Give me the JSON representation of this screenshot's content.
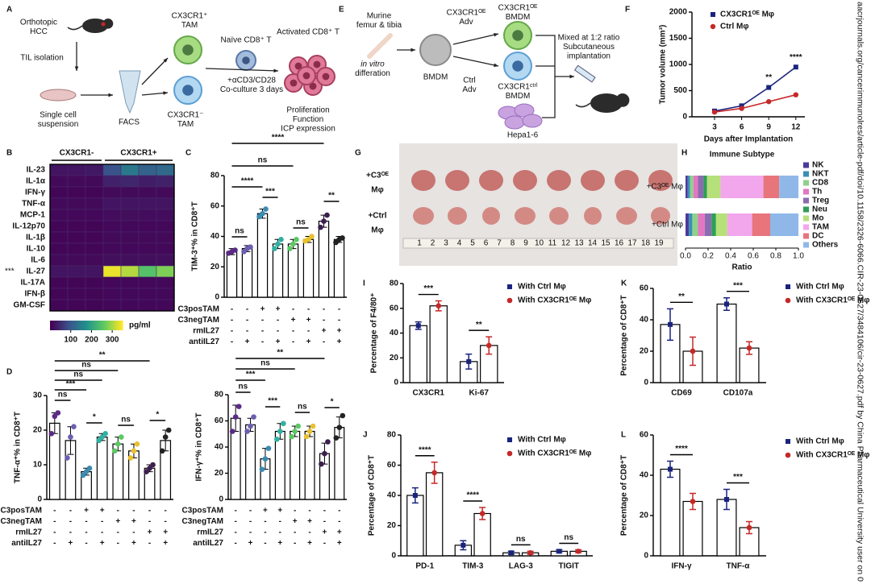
{
  "panel_labels": [
    "A",
    "B",
    "C",
    "D",
    "E",
    "F",
    "G",
    "H",
    "I",
    "J",
    "K",
    "L"
  ],
  "side_note": "aacrjournals.org/cancerimmunolres/article-pdf/doi/10.1158/2326-6066.CIR-23-0627/3484106/cir-23-0627.pdf by China Pharmaceutical University user on 0",
  "diagram_a": {
    "texts": [
      [
        "Orthotopic",
        "HCC"
      ],
      [
        "TIL isolation"
      ],
      [
        "Single cell",
        "suspension"
      ],
      [
        "FACS"
      ],
      [
        "CX3CR1⁺",
        "TAM"
      ],
      [
        "CX3CR1⁻",
        "TAM"
      ],
      [
        "Naïve CD8⁺ T"
      ],
      [
        "+αCD3/CD28",
        "Co-culture 3 days"
      ],
      [
        "Activated CD8⁺ T"
      ],
      [
        "Proliferation",
        "Function",
        "ICP expression"
      ]
    ]
  },
  "diagram_e": {
    "texts": [
      [
        "Murine",
        "femur & tibia"
      ],
      [
        "in vitro",
        "differation"
      ],
      [
        "BMDM"
      ],
      [
        "CX3CR1ᴼᴱ",
        "Adv"
      ],
      [
        "Ctrl",
        "Adv"
      ],
      [
        "CX3CR1ᴼᴱ",
        "BMDM"
      ],
      [
        "CX3CR1ᶜᵗʳˡ",
        "BMDM"
      ],
      [
        "Mixed at 1:2 ratio",
        "Subcutaneous",
        "implantation"
      ],
      [
        "Hepa1-6"
      ]
    ]
  },
  "photo_g": {
    "labels": [
      [
        "+C3ᴼᴱ",
        "Mφ"
      ],
      [
        "+Ctrl",
        "Mφ"
      ]
    ],
    "ruler": [
      "1",
      "2",
      "3",
      "4",
      "5",
      "6",
      "7",
      "8",
      "9",
      "10",
      "11",
      "12",
      "13",
      "14",
      "15",
      "16",
      "17",
      "18",
      "19"
    ]
  },
  "chart_data": [
    {
      "type": "heatmap",
      "rows": [
        "IL-23",
        "IL-1α",
        "IFN-γ",
        "TNF-α",
        "MCP-1",
        "IL-12p70",
        "IL-1β",
        "IL-10",
        "IL-6",
        "IL-27",
        "IL-17A",
        "IFN-β",
        "GM-CSF"
      ],
      "row_marks": [
        null,
        null,
        null,
        null,
        null,
        null,
        null,
        null,
        null,
        "***",
        null,
        null,
        null
      ],
      "groups": [
        {
          "name": "CX3CR1-",
          "values": [
            [
              20,
              20,
              25
            ],
            [
              10,
              10,
              10
            ],
            [
              5,
              5,
              5
            ],
            [
              10,
              10,
              10
            ],
            [
              8,
              8,
              8
            ],
            [
              5,
              5,
              5
            ],
            [
              5,
              5,
              5
            ],
            [
              5,
              5,
              5
            ],
            [
              10,
              10,
              10
            ],
            [
              20,
              20,
              20
            ],
            [
              5,
              5,
              5
            ],
            [
              5,
              5,
              5
            ],
            [
              5,
              5,
              5
            ]
          ]
        },
        {
          "name": "CX3CR1+",
          "values": [
            [
              90,
              140,
              110,
              120
            ],
            [
              35,
              40,
              30,
              35
            ],
            [
              10,
              10,
              10,
              10
            ],
            [
              20,
              20,
              20,
              20
            ],
            [
              12,
              15,
              12,
              12
            ],
            [
              8,
              8,
              8,
              8
            ],
            [
              10,
              10,
              10,
              10
            ],
            [
              8,
              8,
              8,
              8
            ],
            [
              15,
              15,
              15,
              15
            ],
            [
              340,
              310,
              250,
              280
            ],
            [
              8,
              8,
              8,
              8
            ],
            [
              8,
              8,
              8,
              8
            ],
            [
              8,
              8,
              8,
              8
            ]
          ]
        }
      ],
      "clim": [
        0,
        350
      ],
      "cticks": [
        100,
        200,
        300
      ],
      "clabel": "pg/ml"
    },
    {
      "type": "bar",
      "ylabel": "TIM-3⁺% in CD8⁺T",
      "values": [
        30,
        32,
        55,
        35,
        35,
        38,
        50,
        38
      ],
      "errors": [
        2,
        2,
        3,
        3,
        3,
        2,
        4,
        2
      ],
      "points": [
        [
          29,
          30,
          31
        ],
        [
          30,
          32,
          33
        ],
        [
          53,
          55,
          58
        ],
        [
          32,
          35,
          38
        ],
        [
          32,
          35,
          38
        ],
        [
          37,
          38,
          40
        ],
        [
          46,
          50,
          54
        ],
        [
          36,
          38,
          39
        ]
      ],
      "colors": [
        "#5b2a86",
        "#6b5fb0",
        "#3b8bb0",
        "#2fb0a0",
        "#5bc862",
        "#e8c12e",
        "#3d1f4f",
        "#222222"
      ],
      "ylim": [
        0,
        80
      ],
      "yticks": [
        0,
        20,
        40,
        60,
        80
      ],
      "conditions": [
        {
          "name": "C3posTAM",
          "signs": [
            "-",
            "-",
            "+",
            "+",
            "-",
            "-",
            "-",
            "-"
          ]
        },
        {
          "name": "C3negTAM",
          "signs": [
            "-",
            "-",
            "-",
            "-",
            "+",
            "+",
            "-",
            "-"
          ]
        },
        {
          "name": "rmIL27",
          "signs": [
            "-",
            "-",
            "-",
            "-",
            "-",
            "-",
            "+",
            "+"
          ]
        },
        {
          "name": "antiIL27",
          "signs": [
            "-",
            "+",
            "-",
            "+",
            "-",
            "+",
            "-",
            "+"
          ]
        }
      ],
      "annotations": [
        "****",
        "ns",
        "****",
        "ns",
        "***",
        "ns",
        "**"
      ]
    },
    {
      "type": "bar",
      "ylabel": "TNF-α⁺% in CD8⁺T",
      "values": [
        22,
        17,
        8,
        18,
        16,
        14,
        9,
        17
      ],
      "errors": [
        3,
        4,
        1,
        1,
        2,
        2,
        1,
        3
      ],
      "points": [
        [
          19,
          24,
          25
        ],
        [
          12,
          18,
          21
        ],
        [
          7,
          8,
          9
        ],
        [
          17,
          18,
          19
        ],
        [
          14,
          16,
          18
        ],
        [
          12,
          14,
          16
        ],
        [
          8,
          9,
          10
        ],
        [
          14,
          18,
          20
        ]
      ],
      "colors": [
        "#5b2a86",
        "#6b5fb0",
        "#3b8bb0",
        "#2fb0a0",
        "#5bc862",
        "#e8c12e",
        "#3d1f4f",
        "#222222"
      ],
      "ylim": [
        0,
        30
      ],
      "yticks": [
        0,
        10,
        20,
        30
      ],
      "conditions": [
        {
          "name": "C3posTAM",
          "signs": [
            "-",
            "-",
            "+",
            "+",
            "-",
            "-",
            "-",
            "-"
          ]
        },
        {
          "name": "C3negTAM",
          "signs": [
            "-",
            "-",
            "-",
            "-",
            "+",
            "+",
            "-",
            "-"
          ]
        },
        {
          "name": "rmIL27",
          "signs": [
            "-",
            "-",
            "-",
            "-",
            "-",
            "-",
            "+",
            "+"
          ]
        },
        {
          "name": "antiIL27",
          "signs": [
            "-",
            "+",
            "-",
            "+",
            "-",
            "+",
            "-",
            "+"
          ]
        }
      ],
      "annotations": [
        "**",
        "ns",
        "ns",
        "***",
        "ns",
        "*",
        "ns",
        "*"
      ]
    },
    {
      "type": "bar",
      "ylabel": "IFN-γ⁺% in CD8⁺T",
      "values": [
        62,
        57,
        31,
        52,
        52,
        52,
        35,
        55
      ],
      "errors": [
        10,
        5,
        8,
        6,
        4,
        4,
        8,
        8
      ],
      "points": [
        [
          52,
          63,
          71
        ],
        [
          52,
          56,
          63
        ],
        [
          23,
          31,
          39
        ],
        [
          46,
          52,
          58
        ],
        [
          48,
          52,
          56
        ],
        [
          48,
          52,
          56
        ],
        [
          27,
          35,
          44
        ],
        [
          47,
          55,
          64
        ]
      ],
      "colors": [
        "#5b2a86",
        "#6b5fb0",
        "#3b8bb0",
        "#2fb0a0",
        "#5bc862",
        "#e8c12e",
        "#3d1f4f",
        "#222222"
      ],
      "ylim": [
        0,
        80
      ],
      "yticks": [
        0,
        20,
        40,
        60,
        80
      ],
      "conditions": [
        {
          "name": "C3posTAM",
          "signs": [
            "-",
            "-",
            "+",
            "+",
            "-",
            "-",
            "-",
            "-"
          ]
        },
        {
          "name": "C3negTAM",
          "signs": [
            "-",
            "-",
            "-",
            "-",
            "+",
            "+",
            "-",
            "-"
          ]
        },
        {
          "name": "rmIL27",
          "signs": [
            "-",
            "-",
            "-",
            "-",
            "-",
            "-",
            "+",
            "+"
          ]
        },
        {
          "name": "antiIL27",
          "signs": [
            "-",
            "+",
            "-",
            "+",
            "-",
            "+",
            "-",
            "+"
          ]
        }
      ],
      "annotations": [
        "**",
        "ns",
        "***",
        "ns",
        "***",
        "ns",
        "*"
      ]
    },
    {
      "type": "line",
      "xlabel": "Days after Implantation",
      "ylabel": "Tumor volume (mm³)",
      "x": [
        3,
        6,
        9,
        12
      ],
      "xlim": [
        0.5,
        13
      ],
      "xticks": [
        3,
        6,
        9,
        12
      ],
      "ylim": [
        0,
        2000
      ],
      "yticks": [
        0,
        500,
        1000,
        1500,
        2000
      ],
      "series": [
        {
          "name": "CX3CR1ᴼᴱ Mφ",
          "color": "#1a237e",
          "values": [
            110,
            210,
            560,
            950
          ]
        },
        {
          "name": "Ctrl Mφ",
          "color": "#c62828",
          "values": [
            90,
            160,
            290,
            420
          ]
        }
      ],
      "annotations": [
        null,
        null,
        "**",
        "****"
      ]
    },
    {
      "type": "stacked_bar_h",
      "title": "Immune Subtype",
      "xlabel": "Ratio",
      "categories": [
        "+C3ᴼᴱ Mφ",
        "+Ctrl Mφ"
      ],
      "xlim": [
        0,
        1
      ],
      "xticks": [
        {
          "value": 0,
          "label": "0.0"
        },
        0.2,
        0.4,
        0.6,
        0.8,
        {
          "value": 1,
          "label": "1.0"
        }
      ],
      "series": [
        {
          "name": "NK",
          "color": "#4b3a9b",
          "values": [
            0.02,
            0.03
          ]
        },
        {
          "name": "NKT",
          "color": "#3a8fb7",
          "values": [
            0.02,
            0.03
          ]
        },
        {
          "name": "CD8",
          "color": "#8fd18a",
          "values": [
            0.03,
            0.05
          ]
        },
        {
          "name": "Th",
          "color": "#e377c2",
          "values": [
            0.04,
            0.06
          ]
        },
        {
          "name": "Treg",
          "color": "#8c6bb1",
          "values": [
            0.05,
            0.06
          ]
        },
        {
          "name": "Neu",
          "color": "#2e9e57",
          "values": [
            0.03,
            0.04
          ]
        },
        {
          "name": "Mo",
          "color": "#b5e07a",
          "values": [
            0.12,
            0.1
          ]
        },
        {
          "name": "TAM",
          "color": "#f2a6ec",
          "values": [
            0.38,
            0.22
          ]
        },
        {
          "name": "DC",
          "color": "#e8747c",
          "values": [
            0.14,
            0.16
          ]
        },
        {
          "name": "Others",
          "color": "#8fb8e8",
          "values": [
            0.17,
            0.25
          ]
        }
      ]
    },
    {
      "type": "grouped_bar",
      "ylabel": "Percentage of F4/80⁺",
      "categories": [
        "CX3CR1",
        "Ki-67"
      ],
      "ylim": [
        0,
        80
      ],
      "yticks": [
        0,
        20,
        40,
        60,
        80
      ],
      "series": [
        {
          "name": "With Ctrl Mφ",
          "color": "#1a237e",
          "values": [
            46,
            17
          ],
          "errors": [
            3,
            6
          ]
        },
        {
          "name": "With CX3CR1ᴼᴱ Mφ",
          "color": "#c62828",
          "values": [
            62,
            30
          ],
          "errors": [
            4,
            7
          ]
        }
      ],
      "annotations": [
        "***",
        "**"
      ]
    },
    {
      "type": "grouped_bar",
      "ylabel": "Percentage of CD8⁺T",
      "categories": [
        "PD-1",
        "TIM-3",
        "LAG-3",
        "TIGIT"
      ],
      "ylim": [
        0,
        80
      ],
      "yticks": [
        0,
        20,
        40,
        60,
        80
      ],
      "series": [
        {
          "name": "With Ctrl Mφ",
          "color": "#1a237e",
          "values": [
            40,
            7,
            2,
            3
          ],
          "errors": [
            5,
            3,
            1,
            1
          ]
        },
        {
          "name": "With CX3CR1ᴼᴱ Mφ",
          "color": "#c62828",
          "values": [
            55,
            28,
            2,
            3
          ],
          "errors": [
            7,
            4,
            1,
            1
          ]
        }
      ],
      "annotations": [
        "****",
        "****",
        "ns",
        "ns"
      ]
    },
    {
      "type": "grouped_bar",
      "ylabel": "Percentage of CD8⁺T",
      "categories": [
        "CD69",
        "CD107a"
      ],
      "ylim": [
        0,
        60
      ],
      "yticks": [
        0,
        20,
        40,
        60
      ],
      "series": [
        {
          "name": "With Ctrl Mφ",
          "color": "#1a237e",
          "values": [
            37,
            50
          ],
          "errors": [
            10,
            4
          ]
        },
        {
          "name": "With CX3CR1ᴼᴱ Mφ",
          "color": "#c62828",
          "values": [
            20,
            22
          ],
          "errors": [
            9,
            4
          ]
        }
      ],
      "annotations": [
        "**",
        "***"
      ]
    },
    {
      "type": "grouped_bar",
      "ylabel": "Percentage of CD8⁺T",
      "categories": [
        "IFN-γ",
        "TNF-α"
      ],
      "ylim": [
        0,
        60
      ],
      "yticks": [
        0,
        20,
        40,
        60
      ],
      "series": [
        {
          "name": "With Ctrl Mφ",
          "color": "#1a237e",
          "values": [
            43,
            28
          ],
          "errors": [
            4,
            5
          ]
        },
        {
          "name": "With CX3CR1ᴼᴱ Mφ",
          "color": "#c62828",
          "values": [
            27,
            14
          ],
          "errors": [
            4,
            3
          ]
        }
      ],
      "annotations": [
        "****",
        "***"
      ]
    }
  ]
}
